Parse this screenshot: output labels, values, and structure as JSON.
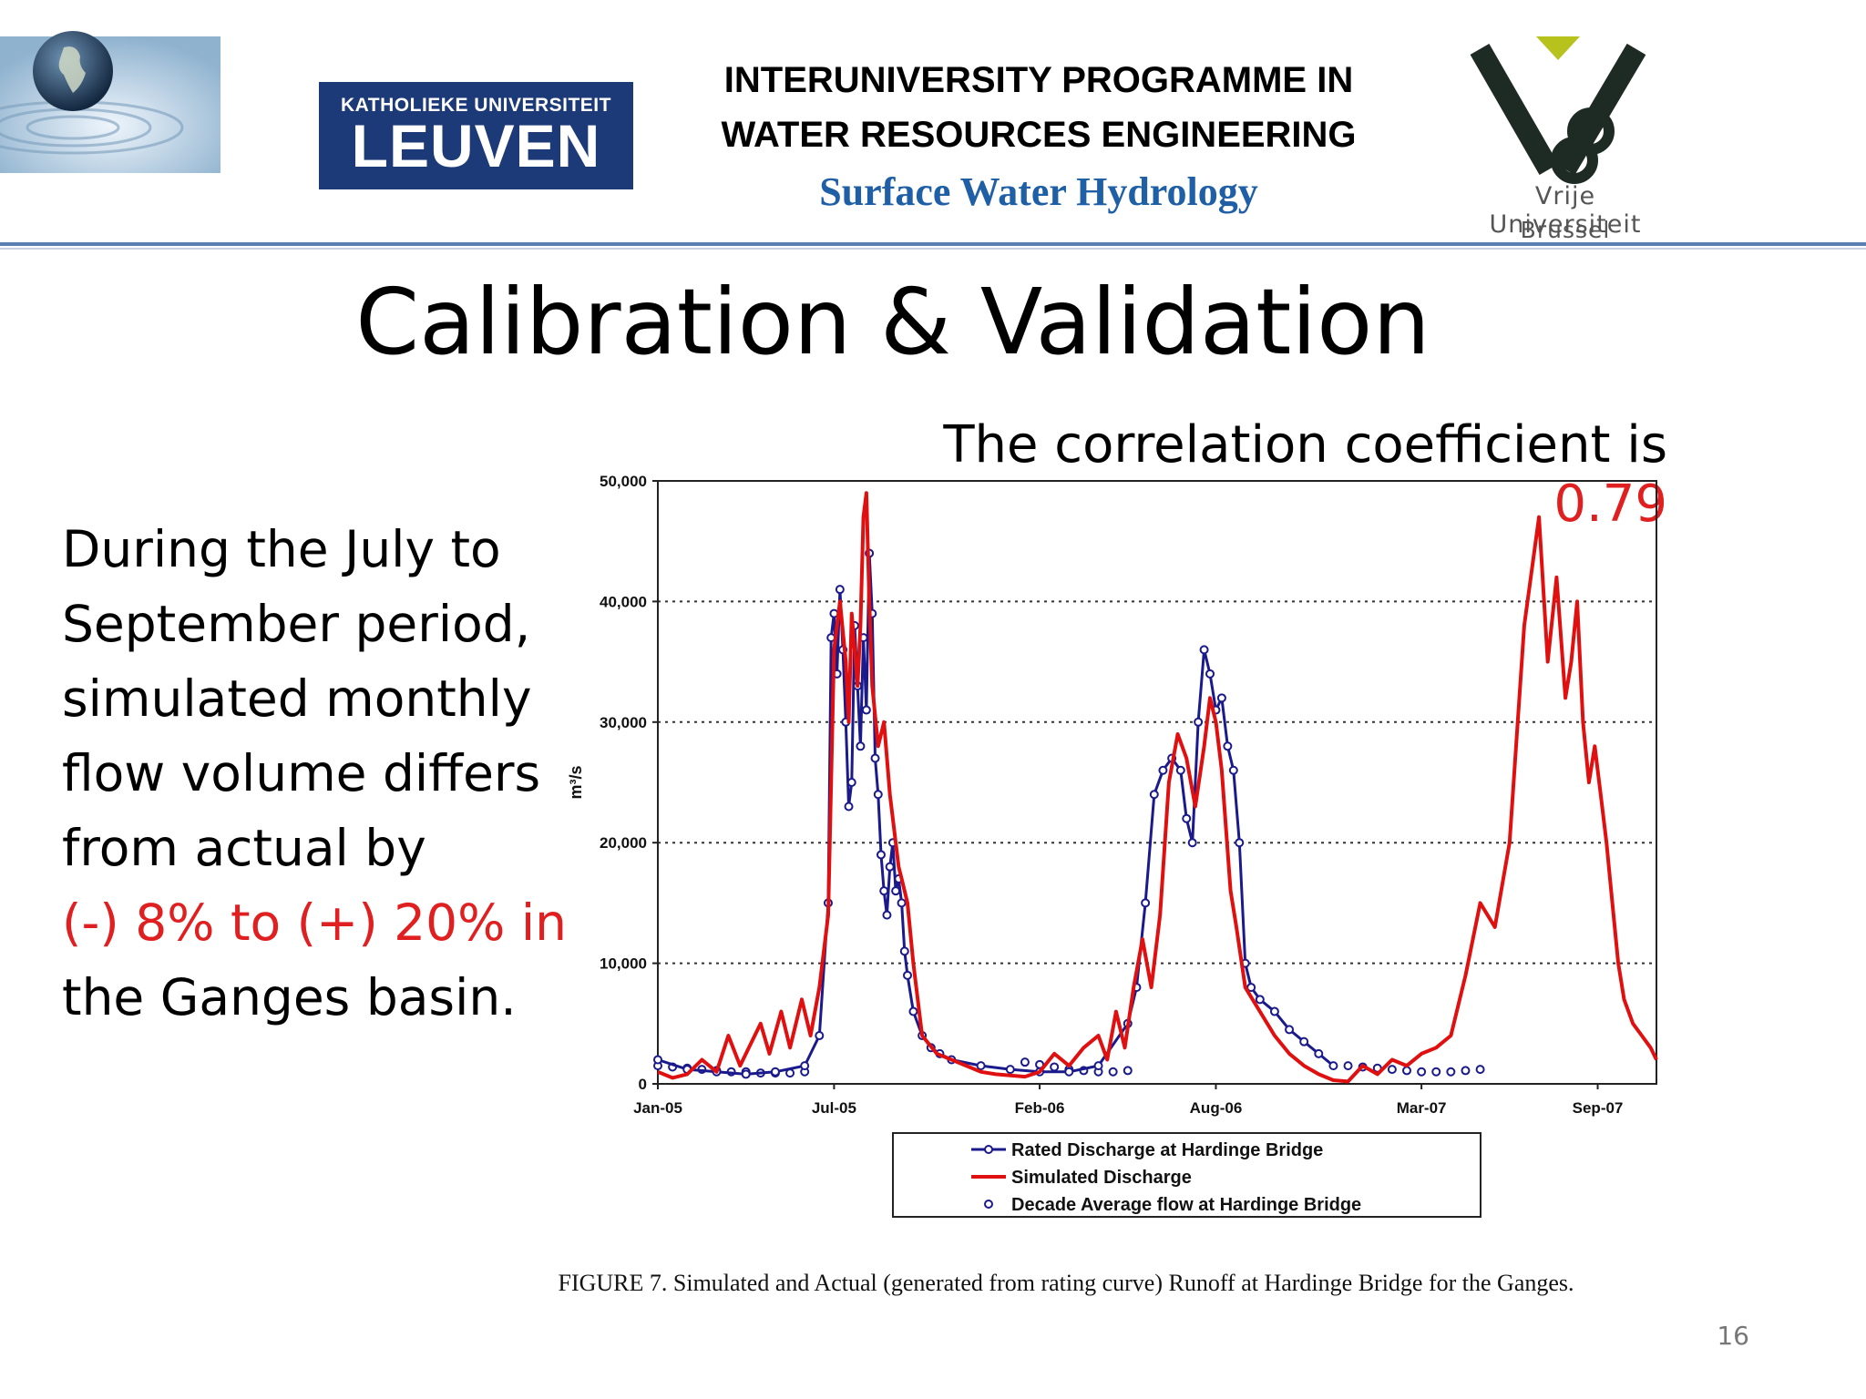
{
  "header": {
    "kul_line1": "KATHOLIEKE UNIVERSITEIT",
    "kul_line2": "LEUVEN",
    "programme_line1": "INTERUNIVERSITY PROGRAMME IN",
    "programme_line2": "WATER RESOURCES ENGINEERING",
    "course": "Surface Water Hydrology",
    "vub_line1": "Vrije Universiteit",
    "vub_line2": "Brussel"
  },
  "slide": {
    "title": "Calibration & Validation",
    "correlation_prefix": "The correlation coefficient is ",
    "correlation_value": "0.79",
    "body_line1": "During the July to",
    "body_line2": "September period,",
    "body_line3": "simulated monthly",
    "body_line4": "flow volume differs",
    "body_line5": "from actual by",
    "body_highlight": "(-) 8% to (+) 20% in",
    "body_line6": "the Ganges basin.",
    "figure_caption": "FIGURE 7.  Simulated and Actual (generated from rating curve) Runoff at Hardinge Bridge for the Ganges.",
    "page_number": "16"
  },
  "colors": {
    "rated": "#1a1a8c",
    "simulated": "#e01010",
    "accent_red": "#e02020",
    "course_blue": "#1f5fa6"
  },
  "chart_data": {
    "type": "line",
    "title": "",
    "xlabel": "",
    "ylabel": "m³/s",
    "ylim": [
      0,
      50000
    ],
    "y_ticks": [
      0,
      10000,
      20000,
      30000,
      40000,
      50000
    ],
    "y_tick_labels": [
      "0",
      "10,000",
      "20,000",
      "30,000",
      "40,000",
      "50,000"
    ],
    "x_range_months": [
      0,
      34
    ],
    "x_ticks": [
      0,
      6,
      13,
      19,
      26,
      32
    ],
    "x_tick_labels": [
      "Jan-05",
      "Jul-05",
      "Feb-06",
      "Aug-06",
      "Mar-07",
      "Sep-07"
    ],
    "grid": "horizontal dotted",
    "legend_position": "bottom",
    "series": [
      {
        "name": "Rated Discharge at Hardinge Bridge",
        "style": "line-with-markers",
        "color": "#1a1a8c",
        "x": [
          0.0,
          1.0,
          2.0,
          3.0,
          4.0,
          5.0,
          5.5,
          5.8,
          5.9,
          6.0,
          6.1,
          6.2,
          6.3,
          6.4,
          6.5,
          6.6,
          6.7,
          6.8,
          6.9,
          7.0,
          7.1,
          7.2,
          7.3,
          7.4,
          7.5,
          7.6,
          7.7,
          7.8,
          7.9,
          8.0,
          8.1,
          8.2,
          8.3,
          8.4,
          8.5,
          8.7,
          9.0,
          9.3,
          9.6,
          10.0,
          11.0,
          12.0,
          13.0,
          14.0,
          15.0,
          16.0,
          16.3,
          16.6,
          16.9,
          17.2,
          17.5,
          17.8,
          18.0,
          18.2,
          18.4,
          18.6,
          18.8,
          19.0,
          19.2,
          19.4,
          19.6,
          19.8,
          20.0,
          20.2,
          20.5,
          21.0,
          21.5,
          22.0,
          22.5,
          23.0
        ],
        "values": [
          2000,
          1200,
          1000,
          800,
          1000,
          1500,
          4000,
          15000,
          37000,
          39000,
          34000,
          41000,
          36000,
          30000,
          23000,
          25000,
          38000,
          33000,
          28000,
          37000,
          31000,
          44000,
          39000,
          27000,
          24000,
          19000,
          16000,
          14000,
          18000,
          20000,
          16000,
          17000,
          15000,
          11000,
          9000,
          6000,
          4000,
          3000,
          2500,
          2000,
          1500,
          1200,
          1000,
          1000,
          1500,
          5000,
          8000,
          15000,
          24000,
          26000,
          27000,
          26000,
          22000,
          20000,
          30000,
          36000,
          34000,
          31000,
          32000,
          28000,
          26000,
          20000,
          10000,
          8000,
          7000,
          6000,
          4500,
          3500,
          2500,
          1500
        ]
      },
      {
        "name": "Simulated Discharge",
        "style": "line",
        "color": "#e01010",
        "x": [
          0.0,
          0.5,
          1.0,
          1.5,
          2.0,
          2.4,
          2.8,
          3.1,
          3.5,
          3.8,
          4.2,
          4.5,
          4.9,
          5.2,
          5.5,
          5.8,
          6.0,
          6.2,
          6.4,
          6.5,
          6.6,
          6.8,
          6.9,
          7.0,
          7.1,
          7.2,
          7.3,
          7.5,
          7.7,
          7.9,
          8.1,
          8.2,
          8.3,
          8.5,
          8.7,
          9.0,
          9.5,
          10.0,
          10.5,
          11.0,
          11.5,
          12.0,
          12.5,
          13.0,
          13.5,
          14.0,
          14.5,
          15.0,
          15.3,
          15.6,
          15.9,
          16.2,
          16.5,
          16.8,
          17.1,
          17.4,
          17.7,
          18.0,
          18.3,
          18.6,
          18.8,
          19.0,
          19.2,
          19.5,
          19.7,
          20.0,
          20.5,
          21.0,
          21.5,
          22.0,
          22.5,
          23.0,
          23.5,
          24.0,
          24.5,
          25.0,
          25.5,
          26.0,
          26.5,
          27.0,
          27.5,
          28.0,
          28.5,
          29.0,
          29.5,
          30.0,
          30.3,
          30.6,
          30.9,
          31.1,
          31.3,
          31.5,
          31.7,
          31.9,
          32.1,
          32.3,
          32.5,
          32.7,
          32.9,
          33.2,
          33.5,
          33.8,
          34.0
        ],
        "values": [
          1000,
          500,
          800,
          2000,
          1000,
          4000,
          1500,
          3000,
          5000,
          2500,
          6000,
          3000,
          7000,
          4000,
          8000,
          14000,
          36000,
          40000,
          35000,
          30000,
          39000,
          33000,
          38000,
          47000,
          49000,
          40000,
          33000,
          28000,
          30000,
          24000,
          20000,
          18000,
          17000,
          15000,
          10000,
          4000,
          2500,
          2000,
          1500,
          1000,
          800,
          700,
          600,
          1000,
          2500,
          1500,
          3000,
          4000,
          2000,
          6000,
          3000,
          8000,
          12000,
          8000,
          14000,
          25000,
          29000,
          27000,
          23000,
          28000,
          32000,
          30000,
          26000,
          16000,
          13000,
          8000,
          6000,
          4000,
          2500,
          1500,
          800,
          300,
          200,
          1500,
          800,
          2000,
          1500,
          2500,
          3000,
          4000,
          9000,
          15000,
          13000,
          20000,
          38000,
          47000,
          35000,
          42000,
          32000,
          35000,
          40000,
          30000,
          25000,
          28000,
          24000,
          20000,
          15000,
          10000,
          7000,
          5000,
          4000,
          3000,
          2000
        ]
      },
      {
        "name": "Decade Average flow at Hardinge Bridge",
        "style": "markers",
        "color": "#1a1a8c",
        "x": [
          0.0,
          0.5,
          1.0,
          1.5,
          2.0,
          2.5,
          3.0,
          3.5,
          4.0,
          4.5,
          5.0,
          12.5,
          13.0,
          13.5,
          14.0,
          14.5,
          15.0,
          15.5,
          16.0,
          23.5,
          24.0,
          24.5,
          25.0,
          25.5,
          26.0,
          26.5,
          27.0,
          27.5,
          28.0
        ],
        "values": [
          1500,
          1400,
          1300,
          1200,
          1100,
          1000,
          1000,
          900,
          900,
          900,
          1000,
          1800,
          1600,
          1400,
          1200,
          1100,
          1000,
          1000,
          1100,
          1500,
          1400,
          1300,
          1200,
          1100,
          1000,
          1000,
          1000,
          1100,
          1200
        ]
      }
    ]
  }
}
